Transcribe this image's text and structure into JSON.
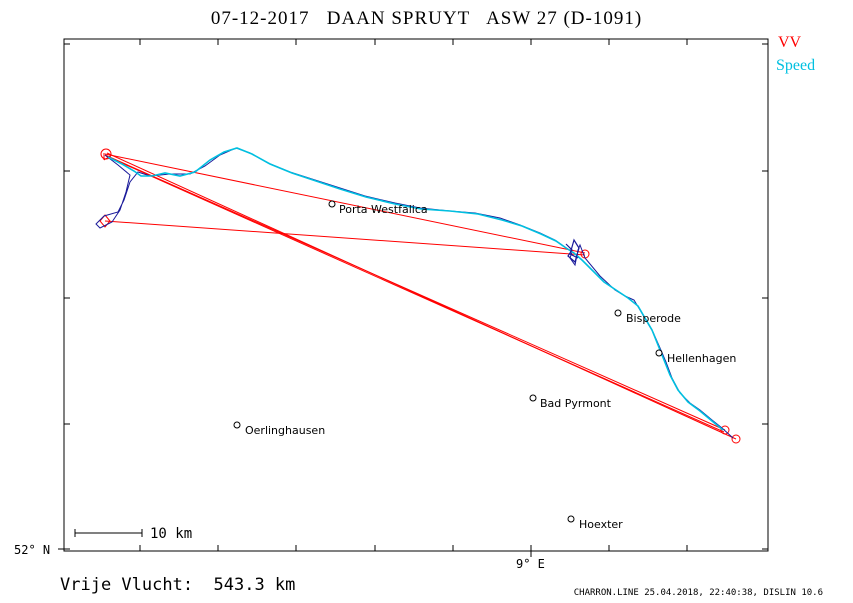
{
  "header": {
    "title": "07-12-2017   DAAN SPRUYT   ASW 27 (D-1091)"
  },
  "legend": {
    "vv_label": "VV",
    "vv_color": "#ff0000",
    "speed_label": "Speed",
    "speed_color": "#00c0e0"
  },
  "map": {
    "places": [
      {
        "name": "Porta Westfalica"
      },
      {
        "name": "Bisperode"
      },
      {
        "name": "Hellenhagen"
      },
      {
        "name": "Bad Pyrmont"
      },
      {
        "name": "Oerlinghausen"
      },
      {
        "name": "Hoexter"
      }
    ],
    "axis": {
      "lat_label": "52° N",
      "lon_label": "9° E"
    },
    "scale_bar": {
      "label": "10 km"
    }
  },
  "summary": {
    "distance_text": "Vrije Vlucht:  543.3 km"
  },
  "footer": {
    "text": "CHARRON.LINE 25.04.2018, 22:40:38, DISLIN 10.6"
  }
}
